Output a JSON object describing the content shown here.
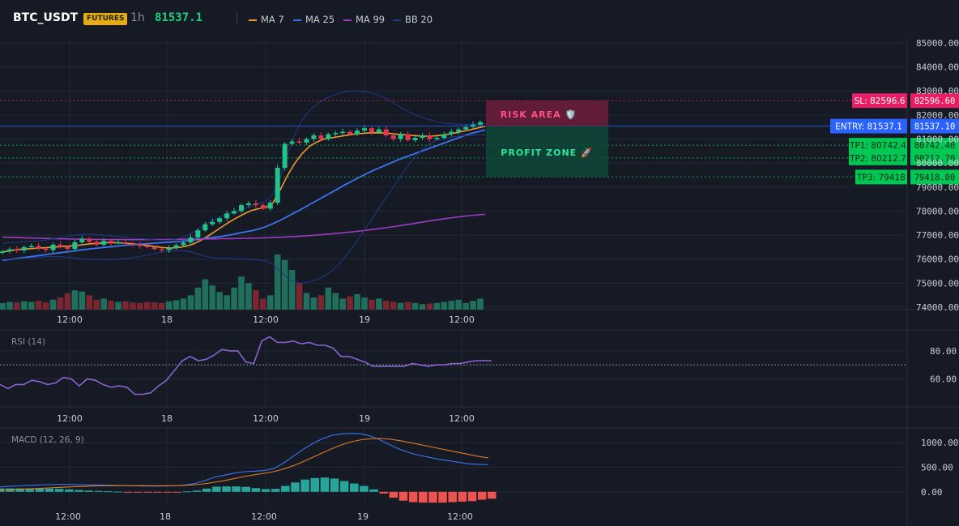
{
  "header": {
    "symbol": "BTC_USDT",
    "badge": "FUTURES",
    "timeframe": "1h",
    "price": "81537.1",
    "legend": [
      {
        "label": "MA 7",
        "color": "#f29b26"
      },
      {
        "label": "MA 25",
        "color": "#3b74f0"
      },
      {
        "label": "MA 99",
        "color": "#9b3cc0"
      },
      {
        "label": "BB 20",
        "color": "#1f3a8a"
      }
    ]
  },
  "colors": {
    "up": "#22c38a",
    "down": "#e0384e",
    "vol_up": "#1f6f5c",
    "vol_down": "#7a2631"
  },
  "chart_data": [
    {
      "type": "candlestick",
      "title": "BTC_USDT",
      "x_ticks": [
        "12:00",
        "18",
        "12:00",
        "19",
        "12:00"
      ],
      "y_ticks": [
        "85000.00",
        "84000.00",
        "83000.00",
        "82000.00",
        "81000.00",
        "80000.00",
        "79000.00",
        "78000.00",
        "77000.00",
        "76000.00",
        "75000.00",
        "74000.00"
      ],
      "ylim": [
        73900,
        85200
      ],
      "candles_close": [
        76320,
        76410,
        76360,
        76500,
        76550,
        76440,
        76380,
        76600,
        76500,
        76430,
        76700,
        76850,
        76720,
        76600,
        76760,
        76680,
        76700,
        76650,
        76620,
        76550,
        76500,
        76420,
        76380,
        76460,
        76580,
        76690,
        76900,
        77200,
        77450,
        77550,
        77700,
        77900,
        78000,
        78250,
        78320,
        78250,
        78100,
        78350,
        79800,
        80800,
        80900,
        80850,
        81000,
        81150,
        81000,
        81200,
        81250,
        81300,
        81200,
        81350,
        81450,
        81280,
        81400,
        81150,
        81000,
        81200,
        80950,
        81050,
        81150,
        81000,
        81050,
        81200,
        81300,
        81400,
        81500,
        81600,
        81700
      ],
      "volume": [
        0.12,
        0.14,
        0.13,
        0.15,
        0.14,
        0.16,
        0.13,
        0.18,
        0.22,
        0.3,
        0.35,
        0.33,
        0.26,
        0.18,
        0.2,
        0.16,
        0.14,
        0.15,
        0.13,
        0.12,
        0.14,
        0.13,
        0.12,
        0.15,
        0.17,
        0.2,
        0.26,
        0.4,
        0.55,
        0.44,
        0.32,
        0.26,
        0.4,
        0.6,
        0.48,
        0.35,
        0.2,
        0.26,
        1.0,
        0.9,
        0.72,
        0.48,
        0.3,
        0.22,
        0.26,
        0.4,
        0.3,
        0.2,
        0.24,
        0.28,
        0.22,
        0.18,
        0.2,
        0.16,
        0.14,
        0.12,
        0.14,
        0.12,
        0.1,
        0.11,
        0.12,
        0.14,
        0.16,
        0.18,
        0.12,
        0.16,
        0.2
      ],
      "series": [
        {
          "name": "MA 7",
          "values": [
            76300,
            76350,
            76400,
            76420,
            76440,
            76460,
            76480,
            76500,
            76520,
            76540,
            76560,
            76600,
            76640,
            76660,
            76680,
            76690,
            76680,
            76660,
            76640,
            76600,
            76560,
            76520,
            76480,
            76460,
            76480,
            76530,
            76620,
            76760,
            76940,
            77140,
            77340,
            77540,
            77720,
            77880,
            78020,
            78100,
            78150,
            78350,
            78900,
            79500,
            80000,
            80400,
            80700,
            80880,
            81000,
            81050,
            81100,
            81150,
            81200,
            81230,
            81250,
            81260,
            81250,
            81230,
            81200,
            81180,
            81150,
            81130,
            81120,
            81130,
            81160,
            81200,
            81260,
            81320,
            81390,
            81460,
            81530
          ]
        },
        {
          "name": "MA 25",
          "values": [
            75950,
            75990,
            76030,
            76070,
            76110,
            76150,
            76190,
            76230,
            76270,
            76310,
            76350,
            76390,
            76430,
            76460,
            76490,
            76520,
            76550,
            76580,
            76610,
            76630,
            76650,
            76670,
            76690,
            76710,
            76730,
            76760,
            76790,
            76830,
            76870,
            76910,
            76950,
            77000,
            77060,
            77120,
            77180,
            77250,
            77350,
            77480,
            77620,
            77780,
            77940,
            78100,
            78270,
            78440,
            78610,
            78780,
            78950,
            79120,
            79280,
            79440,
            79590,
            79730,
            79860,
            79990,
            80120,
            80240,
            80350,
            80460,
            80570,
            80680,
            80790,
            80900,
            81010,
            81120,
            81230,
            81300,
            81380
          ]
        },
        {
          "name": "MA 99",
          "values": [
            76920,
            76910,
            76900,
            76890,
            76880,
            76870,
            76860,
            76850,
            76845,
            76840,
            76835,
            76830,
            76825,
            76820,
            76818,
            76816,
            76814,
            76812,
            76812,
            76812,
            76814,
            76816,
            76818,
            76822,
            76826,
            76830,
            76834,
            76838,
            76842,
            76846,
            76850,
            76856,
            76862,
            76868,
            76874,
            76880,
            76890,
            76900,
            76912,
            76926,
            76942,
            76960,
            76980,
            77002,
            77026,
            77052,
            77080,
            77110,
            77142,
            77176,
            77212,
            77250,
            77290,
            77332,
            77376,
            77422,
            77470,
            77520,
            77570,
            77618,
            77664,
            77706,
            77746,
            77782,
            77814,
            77842,
            77866
          ]
        },
        {
          "name": "BB upper",
          "values": [
            76650,
            76680,
            76700,
            76720,
            76740,
            76760,
            76800,
            76850,
            76900,
            76950,
            77000,
            77030,
            77040,
            77020,
            76990,
            76960,
            76930,
            76900,
            76870,
            76850,
            76820,
            76800,
            76790,
            76800,
            76850,
            76950,
            77100,
            77300,
            77500,
            77650,
            77780,
            77900,
            78000,
            78100,
            78200,
            78320,
            78400,
            78700,
            79400,
            80400,
            81200,
            81800,
            82200,
            82450,
            82650,
            82800,
            82900,
            82980,
            83000,
            82990,
            82950,
            82880,
            82750,
            82600,
            82400,
            82220,
            82060,
            81940,
            81840,
            81750,
            81680,
            81640,
            81620,
            81610,
            81610,
            81620,
            81640
          ]
        },
        {
          "name": "BB lower",
          "values": [
            75980,
            76000,
            76020,
            76040,
            76060,
            76080,
            76100,
            76110,
            76100,
            76080,
            76050,
            76020,
            76000,
            75980,
            75970,
            75980,
            76000,
            76030,
            76070,
            76120,
            76180,
            76240,
            76300,
            76340,
            76360,
            76340,
            76280,
            76180,
            76100,
            76060,
            76040,
            76030,
            76020,
            76000,
            75980,
            75960,
            75920,
            75800,
            75500,
            75200,
            75050,
            75000,
            75050,
            75150,
            75300,
            75500,
            75800,
            76150,
            76550,
            77000,
            77450,
            77900,
            78350,
            78800,
            79250,
            79700,
            80100,
            80450,
            80720,
            80900,
            81000,
            81060,
            81100,
            81130,
            81150,
            81170,
            81180
          ]
        }
      ],
      "lines": [
        {
          "label": "SL: 82596.6",
          "axis_label": "82596.60",
          "price": 82596.6,
          "color": "#e91e63"
        },
        {
          "label": "ENTRY: 81537.1",
          "axis_label": "81537.10",
          "price": 81537.1,
          "color": "#2962ff"
        },
        {
          "label": "TP1: 80742.4",
          "axis_label": "80742.40",
          "price": 80742.4,
          "color": "#00c853"
        },
        {
          "label": "TP2: 80212.7",
          "axis_label": "80212.70",
          "price": 80212.7,
          "color": "#00c853"
        },
        {
          "label": "TP3: 79418",
          "axis_label": "79418.00",
          "price": 79418,
          "color": "#00c853"
        }
      ],
      "annotations": {
        "risk": "RISK AREA 🛡️",
        "profit": "PROFIT ZONE 🚀"
      }
    },
    {
      "type": "line",
      "title": "RSI (14)",
      "y_ticks": [
        "80.00",
        "60.00"
      ],
      "ylim": [
        40,
        95
      ],
      "reference_line": 70,
      "x_ticks": [
        "12:00",
        "18",
        "12:00",
        "19",
        "12:00"
      ],
      "values": [
        56,
        53,
        56,
        56,
        59,
        58,
        56,
        57,
        61,
        60,
        55,
        60,
        59,
        56,
        54,
        55,
        54,
        49,
        49,
        50,
        55,
        59,
        66,
        73,
        76,
        73,
        74,
        77,
        81,
        80,
        80,
        72,
        71,
        87,
        90,
        86,
        86,
        87,
        85,
        86,
        84,
        84,
        82,
        76,
        76,
        74,
        72,
        69,
        69,
        69,
        69,
        69,
        71,
        70,
        69,
        70,
        70,
        71,
        71,
        72,
        73,
        73,
        73
      ]
    },
    {
      "type": "bar+line",
      "title": "MACD (12, 26, 9)",
      "y_ticks": [
        "1000.00",
        "500.00",
        "0.00"
      ],
      "ylim": [
        -300,
        1300
      ],
      "x_ticks": [
        "12:00",
        "18",
        "12:00",
        "19",
        "12:00"
      ],
      "series": [
        {
          "name": "MACD",
          "values": [
            100,
            110,
            120,
            130,
            140,
            145,
            150,
            150,
            145,
            140,
            138,
            135,
            130,
            125,
            120,
            118,
            115,
            118,
            125,
            140,
            170,
            230,
            300,
            340,
            380,
            410,
            420,
            430,
            470,
            580,
            720,
            860,
            980,
            1080,
            1150,
            1180,
            1190,
            1180,
            1130,
            1050,
            950,
            860,
            790,
            740,
            700,
            660,
            630,
            600,
            570,
            560,
            550
          ]
        },
        {
          "name": "Signal",
          "values": [
            30,
            40,
            50,
            60,
            70,
            80,
            90,
            100,
            108,
            114,
            120,
            124,
            126,
            127,
            126,
            125,
            124,
            124,
            126,
            132,
            145,
            165,
            195,
            230,
            270,
            310,
            345,
            375,
            410,
            460,
            530,
            610,
            700,
            790,
            880,
            960,
            1020,
            1060,
            1080,
            1085,
            1070,
            1040,
            1000,
            960,
            920,
            880,
            840,
            800,
            760,
            720,
            690
          ]
        },
        {
          "name": "Histogram",
          "values": [
            70,
            70,
            70,
            70,
            70,
            65,
            60,
            50,
            37,
            26,
            18,
            11,
            4,
            -2,
            -6,
            -7,
            -9,
            -6,
            -1,
            8,
            25,
            65,
            105,
            110,
            110,
            100,
            75,
            55,
            60,
            120,
            190,
            250,
            280,
            290,
            270,
            220,
            170,
            120,
            50,
            -35,
            -120,
            -180,
            -210,
            -220,
            -220,
            -220,
            -210,
            -200,
            -190,
            -160,
            -140
          ]
        }
      ]
    }
  ]
}
